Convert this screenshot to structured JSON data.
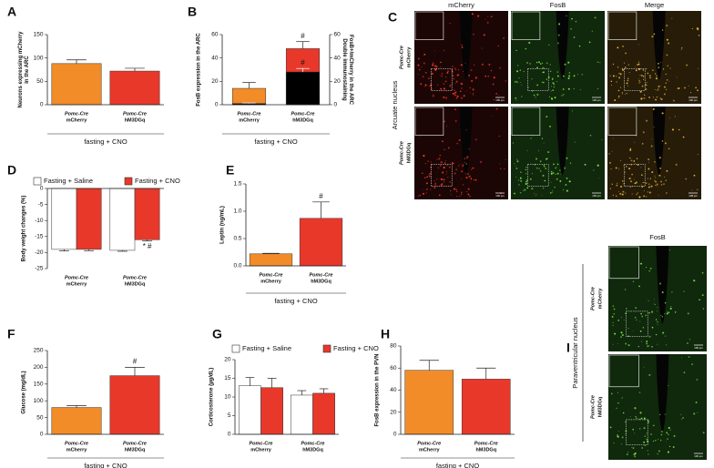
{
  "chart_data": [
    {
      "panel": "A",
      "type": "bar",
      "ylabel": [
        "Neurons expressing mCherry",
        "in the ARC"
      ],
      "category_prefix": "Pomc-Cre",
      "categories": [
        "mCherry",
        "hM3DGq"
      ],
      "series": [
        {
          "values": [
            88,
            72
          ],
          "errors": [
            8,
            6
          ],
          "colors": [
            "#f28c28",
            "#e8382a"
          ]
        }
      ],
      "ylim": [
        0,
        150
      ],
      "yticks": [
        0,
        50,
        100,
        150
      ],
      "xlabel": "fasting + CNO"
    },
    {
      "panel": "B",
      "type": "bar",
      "bar_mode": "overlay",
      "ylabel": [
        "FosB expression in the ARC"
      ],
      "y2label": [
        "Double immunostaining",
        "FosB+/mCherry in the ARC"
      ],
      "category_prefix": "Pomc-Cre",
      "categories": [
        "mCherry",
        "hM3DGq"
      ],
      "series": [
        {
          "values": [
            14,
            48
          ],
          "errors": [
            5,
            6
          ],
          "colors": [
            "#f28c28",
            "#e8382a"
          ],
          "annotations": [
            null,
            "#"
          ]
        },
        {
          "values": [
            1,
            28
          ],
          "errors": [
            0.5,
            3
          ],
          "color": "#000000",
          "axis": "y2",
          "annotations": [
            null,
            "#"
          ]
        }
      ],
      "ylim": [
        0,
        60
      ],
      "yticks": [
        0,
        20,
        40,
        60
      ],
      "y2lim": [
        0,
        60
      ],
      "y2ticks": [
        0,
        20,
        40,
        60
      ],
      "xlabel": "fasting + CNO"
    },
    {
      "panel": "D",
      "type": "bar",
      "ylabel": [
        "Body weight changes (%)"
      ],
      "category_prefix": "Pomc-Cre",
      "categories": [
        "mCherry",
        "hM3DGq"
      ],
      "series": [
        {
          "name": "Fasting + Saline",
          "color": "#ffffff",
          "values": [
            -19,
            -19.3
          ],
          "errors": [
            0.5,
            0.3
          ]
        },
        {
          "name": "Fasting + CNO",
          "color": "#e8382a",
          "values": [
            -19,
            -16
          ],
          "errors": [
            0.4,
            0.4
          ],
          "annotations": [
            null,
            "* #"
          ]
        }
      ],
      "ylim": [
        -25,
        0
      ],
      "yticks": [
        0,
        -5,
        -10,
        -15,
        -20,
        -25
      ],
      "legend": "top"
    },
    {
      "panel": "E",
      "type": "bar",
      "ylabel": [
        "Leptin (ng/mL)"
      ],
      "category_prefix": "Pomc-Cre",
      "categories": [
        "mCherry",
        "hM3DGq"
      ],
      "series": [
        {
          "values": [
            0.22,
            0.87
          ],
          "errors": [
            0.01,
            0.3
          ],
          "colors": [
            "#f28c28",
            "#e8382a"
          ],
          "annotations": [
            null,
            "#"
          ]
        }
      ],
      "ylim": [
        0,
        1.5
      ],
      "yticks": [
        {
          "value": 0,
          "label": "0.0"
        },
        0.5,
        {
          "value": 1,
          "label": "1.0"
        },
        1.5
      ],
      "xlabel": "fasting + CNO"
    },
    {
      "panel": "F",
      "type": "bar",
      "ylabel": [
        "Glucose (mg/dL)"
      ],
      "category_prefix": "Pomc-Cre",
      "categories": [
        "mCherry",
        "hM3DGq"
      ],
      "series": [
        {
          "values": [
            80,
            175
          ],
          "errors": [
            6,
            25
          ],
          "colors": [
            "#f28c28",
            "#e8382a"
          ],
          "annotations": [
            null,
            "#"
          ]
        }
      ],
      "ylim": [
        0,
        250
      ],
      "yticks": [
        0,
        50,
        100,
        150,
        200,
        250
      ],
      "xlabel": "fasting + CNO"
    },
    {
      "panel": "G",
      "type": "bar",
      "ylabel": [
        "Corticosterone (µg/dL)"
      ],
      "category_prefix": "Pomc-Cre",
      "categories": [
        "mCherry",
        "hM3DGq"
      ],
      "series": [
        {
          "name": "Fasting + Saline",
          "color": "#ffffff",
          "values": [
            13,
            10.5
          ],
          "errors": [
            2.2,
            1.2
          ]
        },
        {
          "name": "Fasting + CNO",
          "color": "#e8382a",
          "values": [
            12.5,
            11
          ],
          "errors": [
            2.5,
            1.2
          ]
        }
      ],
      "ylim": [
        0,
        20
      ],
      "yticks": [
        0,
        5,
        10,
        15,
        20
      ],
      "legend": "top"
    },
    {
      "panel": "H",
      "type": "bar",
      "ylabel": [
        "FosB expression in the PVN"
      ],
      "category_prefix": "Pomc-Cre",
      "categories": [
        "mCherry",
        "hM3DGq"
      ],
      "series": [
        {
          "values": [
            58,
            50
          ],
          "errors": [
            9,
            10
          ],
          "colors": [
            "#f28c28",
            "#e8382a"
          ]
        }
      ],
      "ylim": [
        0,
        80
      ],
      "yticks": [
        0,
        20,
        40,
        60,
        80
      ],
      "xlabel": "fasting + CNO"
    }
  ],
  "micrographs": [
    {
      "panel": "C",
      "region": "Arcuate nucleus",
      "columns": [
        "mCherry",
        "FosB",
        "Merge"
      ],
      "row_prefix": "Pomc-Cre",
      "rows": [
        "mCherry",
        "hM3DGq"
      ],
      "scale": "100 µm"
    },
    {
      "panel": "I",
      "region": "Paraventricular nucleus",
      "columns": [
        "FosB"
      ],
      "row_prefix": "Pomc-Cre",
      "rows": [
        "mCherry",
        "hM3DGq"
      ],
      "scale": "100 µm"
    }
  ]
}
